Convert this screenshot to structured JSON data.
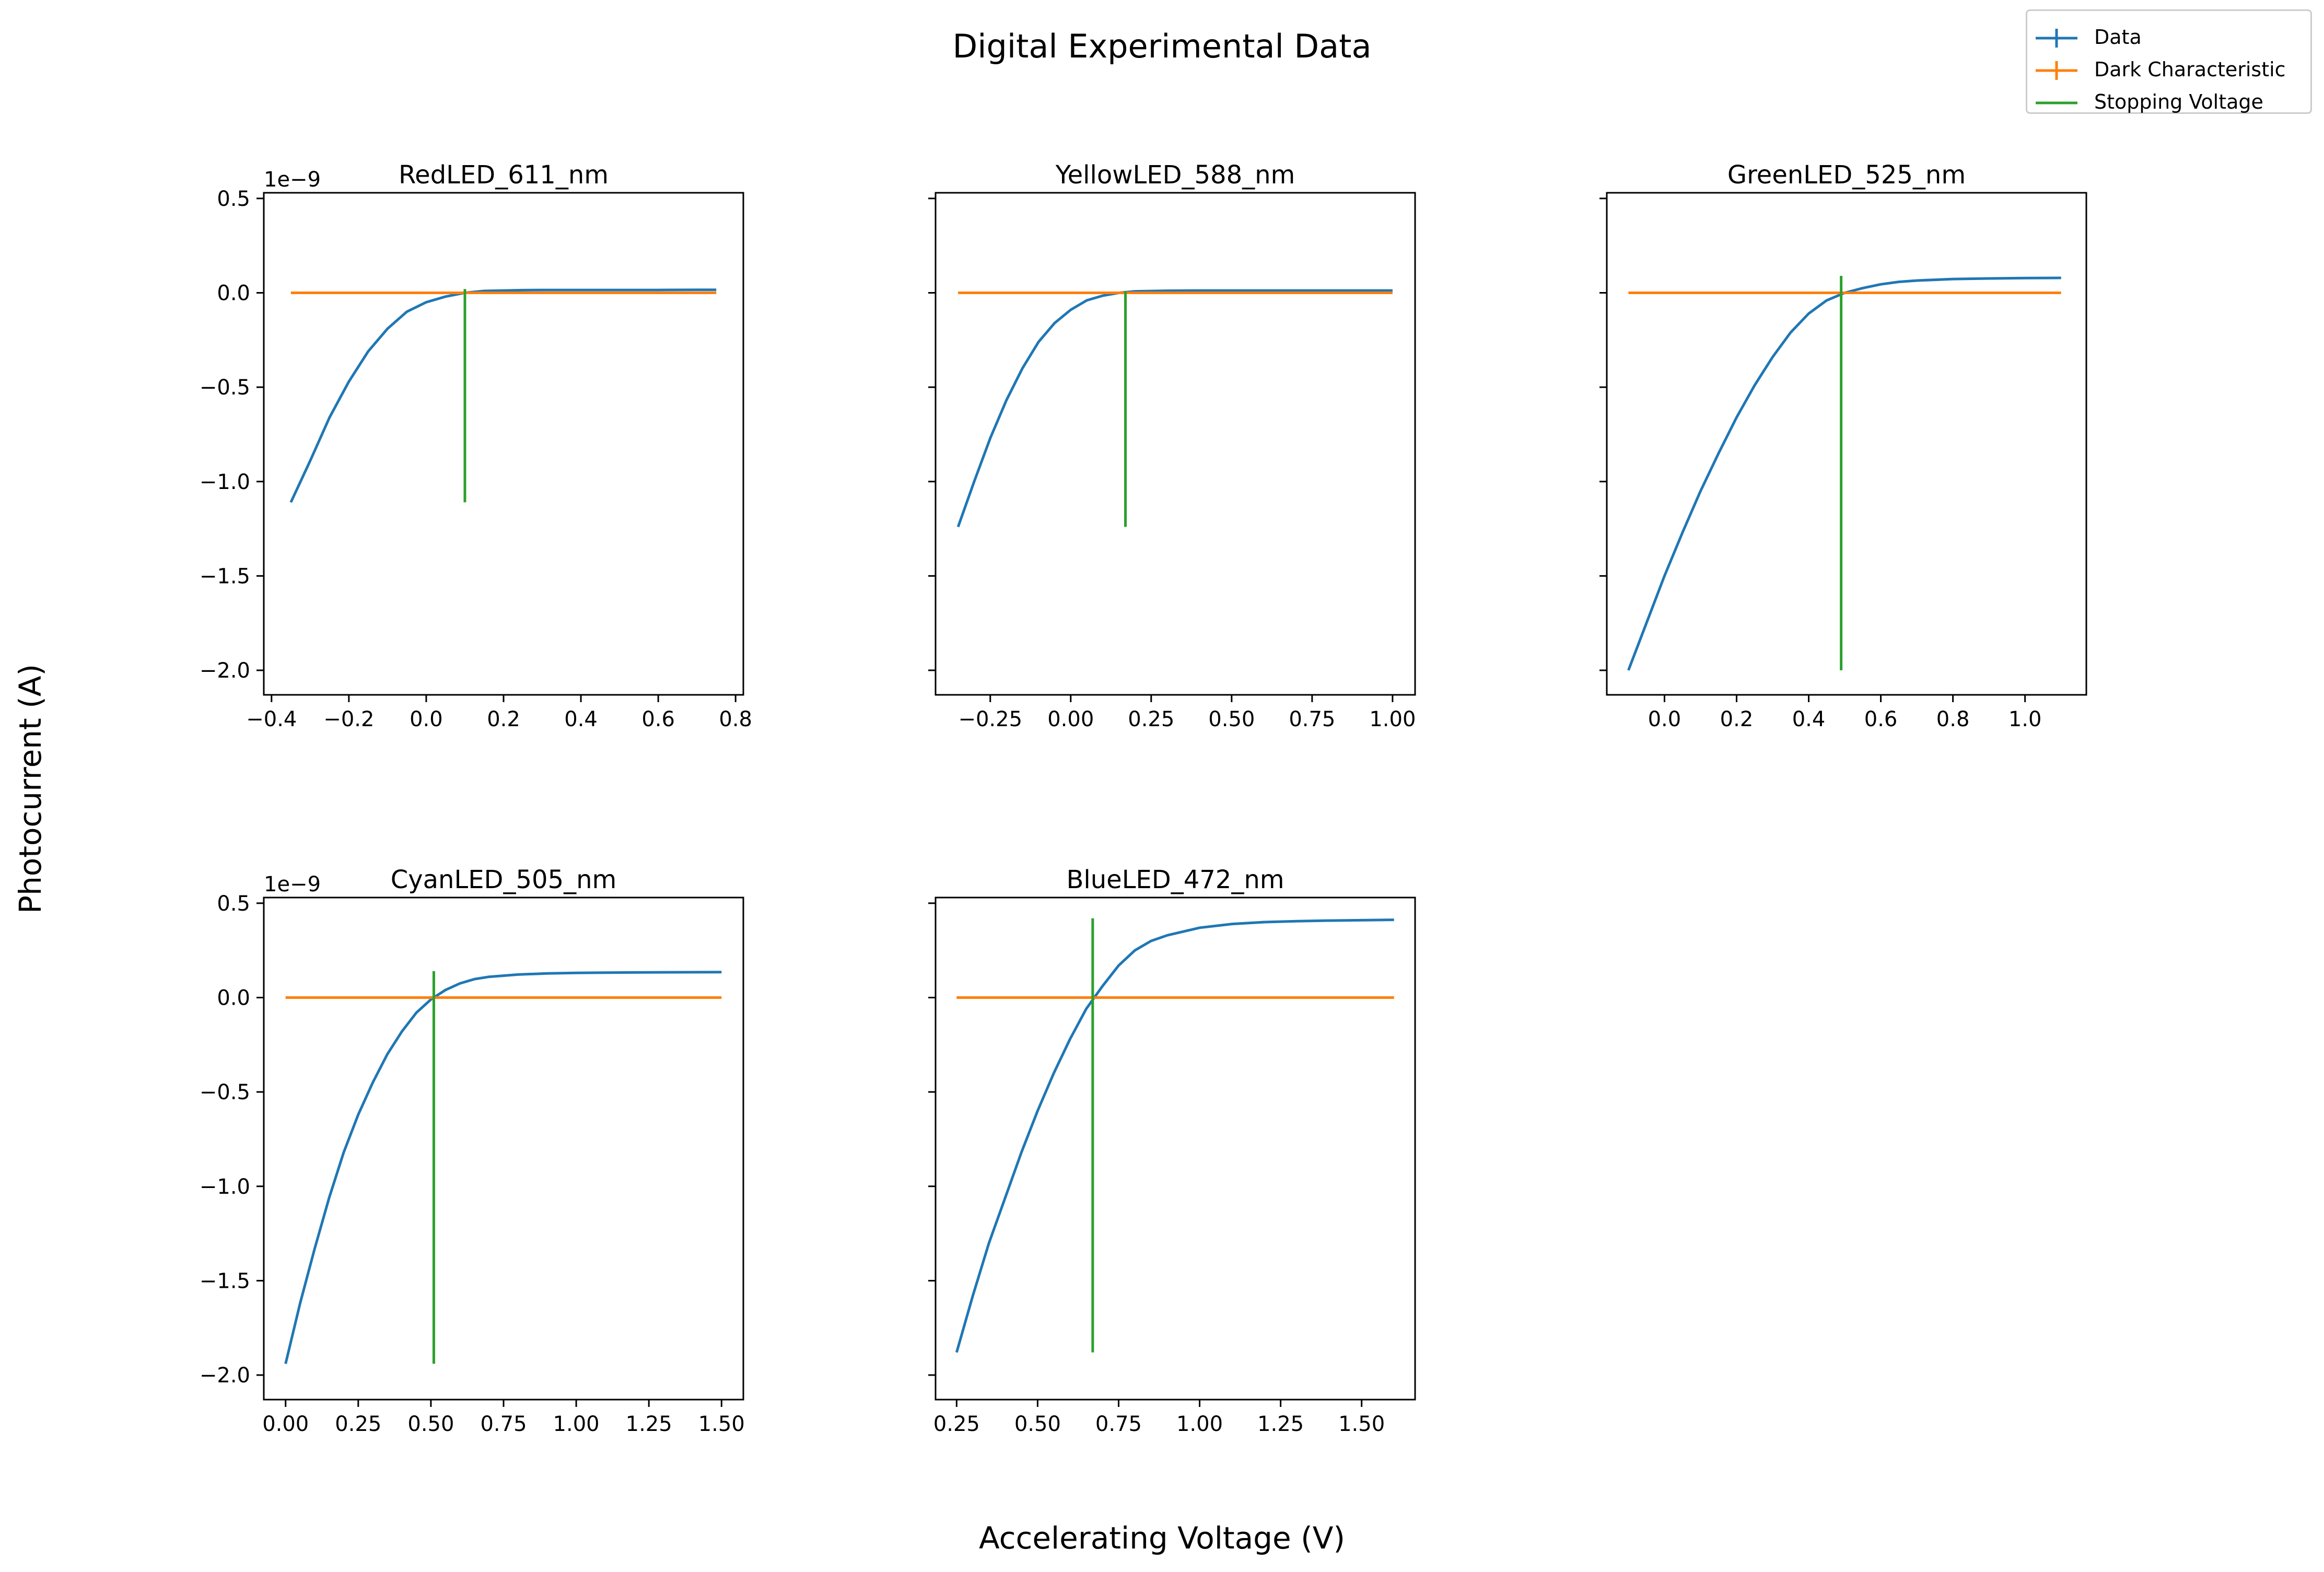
{
  "figure": {
    "title": "Digital Experimental Data",
    "xlabel": "Accelerating Voltage (V)",
    "ylabel": "Photocurrent (A)",
    "legend": [
      {
        "label": "Data",
        "color": "#1f77b4",
        "marker": "errorbar"
      },
      {
        "label": "Dark Characteristic",
        "color": "#ff7f0e",
        "marker": "errorbar"
      },
      {
        "label": "Stopping Voltage",
        "color": "#2ca02c",
        "marker": "line"
      }
    ]
  },
  "chart_data": [
    {
      "type": "line",
      "title": "RedLED_611_nm",
      "offset_text": "1e−9",
      "show_ytick_labels": true,
      "xlim": [
        -0.42,
        0.82
      ],
      "ylim": [
        -2.13,
        0.53
      ],
      "xticks": [
        -0.4,
        -0.2,
        0.0,
        0.2,
        0.4,
        0.6,
        0.8
      ],
      "xtick_labels": [
        "−0.4",
        "−0.2",
        "0.0",
        "0.2",
        "0.4",
        "0.6",
        "0.8"
      ],
      "yticks": [
        0.5,
        0.0,
        -0.5,
        -1.0,
        -1.5,
        -2.0
      ],
      "ytick_labels": [
        "0.5",
        "0.0",
        "−0.5",
        "−1.0",
        "−1.5",
        "−2.0"
      ],
      "series": [
        {
          "name": "Data",
          "color": "#1f77b4",
          "x": [
            -0.35,
            -0.3,
            -0.25,
            -0.2,
            -0.15,
            -0.1,
            -0.05,
            0.0,
            0.05,
            0.1,
            0.15,
            0.2,
            0.25,
            0.3,
            0.4,
            0.5,
            0.6,
            0.7,
            0.75
          ],
          "y": [
            -1.11,
            -0.89,
            -0.66,
            -0.47,
            -0.31,
            -0.19,
            -0.1,
            -0.05,
            -0.02,
            0.0,
            0.01,
            0.012,
            0.014,
            0.015,
            0.015,
            0.015,
            0.015,
            0.016,
            0.016
          ]
        },
        {
          "name": "Dark Characteristic",
          "color": "#ff7f0e",
          "x": [
            -0.35,
            0.75
          ],
          "y": [
            0.0,
            0.0
          ]
        }
      ],
      "stopping_voltage": {
        "x": 0.1,
        "y_range": [
          -1.11,
          0.02
        ]
      }
    },
    {
      "type": "line",
      "title": "YellowLED_588_nm",
      "offset_text": "",
      "show_ytick_labels": false,
      "xlim": [
        -0.42,
        1.07
      ],
      "ylim": [
        -2.13,
        0.53
      ],
      "xticks": [
        -0.25,
        0.0,
        0.25,
        0.5,
        0.75,
        1.0
      ],
      "xtick_labels": [
        "−0.25",
        "0.00",
        "0.25",
        "0.50",
        "0.75",
        "1.00"
      ],
      "yticks": [
        0.5,
        0.0,
        -0.5,
        -1.0,
        -1.5,
        -2.0
      ],
      "ytick_labels": [],
      "series": [
        {
          "name": "Data",
          "color": "#1f77b4",
          "x": [
            -0.35,
            -0.3,
            -0.25,
            -0.2,
            -0.15,
            -0.1,
            -0.05,
            0.0,
            0.05,
            0.1,
            0.15,
            0.2,
            0.3,
            0.4,
            0.5,
            0.6,
            0.7,
            0.8,
            0.9,
            1.0
          ],
          "y": [
            -1.24,
            -1.0,
            -0.77,
            -0.57,
            -0.4,
            -0.26,
            -0.16,
            -0.09,
            -0.04,
            -0.015,
            0.0,
            0.008,
            0.011,
            0.012,
            0.012,
            0.012,
            0.012,
            0.012,
            0.012,
            0.012
          ]
        },
        {
          "name": "Dark Characteristic",
          "color": "#ff7f0e",
          "x": [
            -0.35,
            1.0
          ],
          "y": [
            0.0,
            0.0
          ]
        }
      ],
      "stopping_voltage": {
        "x": 0.17,
        "y_range": [
          -1.24,
          0.01
        ]
      }
    },
    {
      "type": "line",
      "title": "GreenLED_525_nm",
      "offset_text": "",
      "show_ytick_labels": false,
      "xlim": [
        -0.16,
        1.17
      ],
      "ylim": [
        -2.13,
        0.53
      ],
      "xticks": [
        0.0,
        0.2,
        0.4,
        0.6,
        0.8,
        1.0
      ],
      "xtick_labels": [
        "0.0",
        "0.2",
        "0.4",
        "0.6",
        "0.8",
        "1.0"
      ],
      "yticks": [
        0.5,
        0.0,
        -0.5,
        -1.0,
        -1.5,
        -2.0
      ],
      "ytick_labels": [],
      "series": [
        {
          "name": "Data",
          "color": "#1f77b4",
          "x": [
            -0.1,
            -0.05,
            0.0,
            0.05,
            0.1,
            0.15,
            0.2,
            0.25,
            0.3,
            0.35,
            0.4,
            0.45,
            0.5,
            0.55,
            0.6,
            0.65,
            0.7,
            0.8,
            0.9,
            1.0,
            1.1
          ],
          "y": [
            -2.0,
            -1.75,
            -1.5,
            -1.27,
            -1.05,
            -0.85,
            -0.66,
            -0.49,
            -0.34,
            -0.21,
            -0.11,
            -0.04,
            0.0,
            0.025,
            0.045,
            0.058,
            0.065,
            0.073,
            0.076,
            0.078,
            0.079
          ]
        },
        {
          "name": "Dark Characteristic",
          "color": "#ff7f0e",
          "x": [
            -0.1,
            1.1
          ],
          "y": [
            0.0,
            0.0
          ]
        }
      ],
      "stopping_voltage": {
        "x": 0.49,
        "y_range": [
          -2.0,
          0.09
        ]
      }
    },
    {
      "type": "line",
      "title": "CyanLED_505_nm",
      "offset_text": "1e−9",
      "show_ytick_labels": true,
      "xlim": [
        -0.075,
        1.575
      ],
      "ylim": [
        -2.13,
        0.53
      ],
      "xticks": [
        0.0,
        0.25,
        0.5,
        0.75,
        1.0,
        1.25,
        1.5
      ],
      "xtick_labels": [
        "0.00",
        "0.25",
        "0.50",
        "0.75",
        "1.00",
        "1.25",
        "1.50"
      ],
      "yticks": [
        0.5,
        0.0,
        -0.5,
        -1.0,
        -1.5,
        -2.0
      ],
      "ytick_labels": [
        "0.5",
        "0.0",
        "−0.5",
        "−1.0",
        "−1.5",
        "−2.0"
      ],
      "series": [
        {
          "name": "Data",
          "color": "#1f77b4",
          "x": [
            0.0,
            0.05,
            0.1,
            0.15,
            0.2,
            0.25,
            0.3,
            0.35,
            0.4,
            0.45,
            0.5,
            0.55,
            0.6,
            0.65,
            0.7,
            0.8,
            0.9,
            1.0,
            1.2,
            1.5
          ],
          "y": [
            -1.94,
            -1.62,
            -1.33,
            -1.06,
            -0.82,
            -0.62,
            -0.45,
            -0.3,
            -0.18,
            -0.08,
            -0.01,
            0.04,
            0.075,
            0.098,
            0.11,
            0.122,
            0.128,
            0.131,
            0.133,
            0.135
          ]
        },
        {
          "name": "Dark Characteristic",
          "color": "#ff7f0e",
          "x": [
            0.0,
            1.5
          ],
          "y": [
            0.0,
            0.0
          ]
        }
      ],
      "stopping_voltage": {
        "x": 0.51,
        "y_range": [
          -1.94,
          0.14
        ]
      }
    },
    {
      "type": "line",
      "title": "BlueLED_472_nm",
      "offset_text": "",
      "show_ytick_labels": false,
      "xlim": [
        0.185,
        1.665
      ],
      "ylim": [
        -2.13,
        0.53
      ],
      "xticks": [
        0.25,
        0.5,
        0.75,
        1.0,
        1.25,
        1.5
      ],
      "xtick_labels": [
        "0.25",
        "0.50",
        "0.75",
        "1.00",
        "1.25",
        "1.50"
      ],
      "yticks": [
        0.5,
        0.0,
        -0.5,
        -1.0,
        -1.5,
        -2.0
      ],
      "ytick_labels": [],
      "series": [
        {
          "name": "Data",
          "color": "#1f77b4",
          "x": [
            0.25,
            0.3,
            0.35,
            0.4,
            0.45,
            0.5,
            0.55,
            0.6,
            0.65,
            0.7,
            0.75,
            0.8,
            0.85,
            0.9,
            1.0,
            1.1,
            1.2,
            1.3,
            1.4,
            1.5,
            1.6
          ],
          "y": [
            -1.88,
            -1.58,
            -1.3,
            -1.06,
            -0.82,
            -0.6,
            -0.4,
            -0.22,
            -0.06,
            0.06,
            0.17,
            0.25,
            0.3,
            0.33,
            0.37,
            0.39,
            0.4,
            0.405,
            0.408,
            0.41,
            0.412
          ]
        },
        {
          "name": "Dark Characteristic",
          "color": "#ff7f0e",
          "x": [
            0.25,
            1.6
          ],
          "y": [
            0.0,
            0.0
          ]
        }
      ],
      "stopping_voltage": {
        "x": 0.67,
        "y_range": [
          -1.88,
          0.42
        ]
      }
    }
  ]
}
